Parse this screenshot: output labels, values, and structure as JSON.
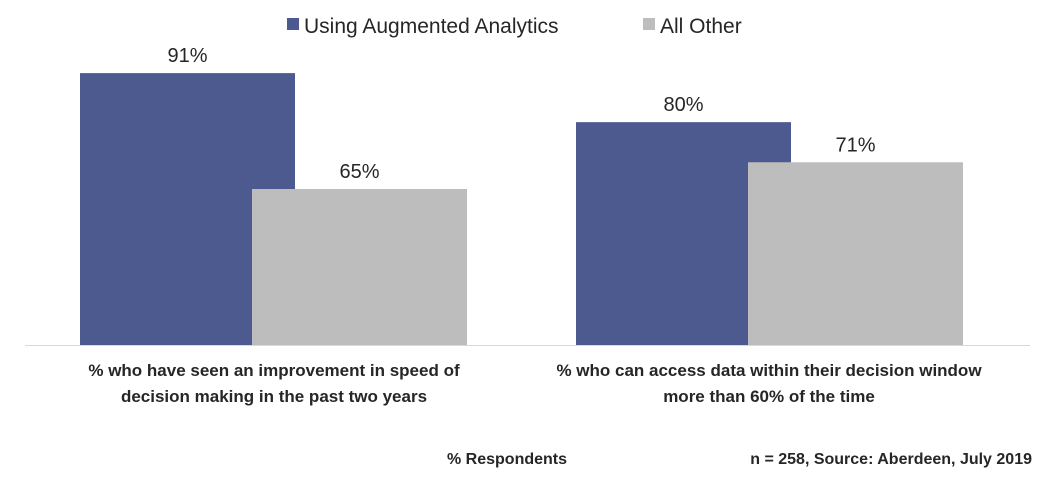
{
  "chart_data": {
    "type": "bar",
    "title": "",
    "categories": [
      [
        "% who have seen an improvement in speed of",
        "decision making in the past two years"
      ],
      [
        "% who can access data within their decision window",
        "more than 60% of the time"
      ]
    ],
    "series": [
      {
        "name": "Using Augmented Analytics",
        "values": [
          91,
          80
        ],
        "labels": [
          "91%",
          "80%"
        ],
        "color": "#4D5A8F"
      },
      {
        "name": "All Other",
        "values": [
          65,
          71
        ],
        "labels": [
          "65%",
          "71%"
        ],
        "color": "#BDBDBD"
      }
    ],
    "xlabel": "% Respondents",
    "ylabel": "",
    "ylim": [
      30,
      100
    ],
    "grid": false,
    "legend": "top-center",
    "source_note": "n = 258, Source: Aberdeen, July 2019",
    "axis_color": "#D9D9D9"
  }
}
